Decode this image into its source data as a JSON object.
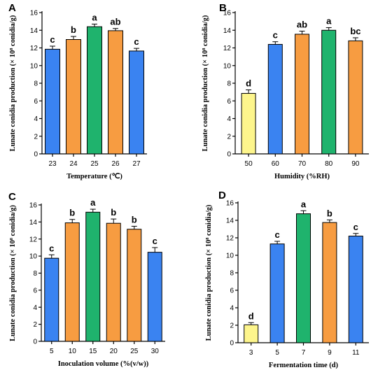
{
  "chart_data": [
    {
      "type": "bar",
      "panel": "A",
      "xlabel": "Temperature (℃)",
      "ylabel": "Lunate conidia production (× 10⁸ conidia/g)",
      "ylim": [
        0,
        16
      ],
      "yticks": [
        "0",
        "2",
        "4",
        "6",
        "8",
        "10",
        "12",
        "14",
        "16"
      ],
      "categories": [
        "23",
        "24",
        "25",
        "26",
        "27"
      ],
      "values": [
        11.85,
        12.95,
        14.4,
        13.95,
        11.65
      ],
      "errors": [
        0.35,
        0.35,
        0.3,
        0.25,
        0.3
      ],
      "sig": [
        "c",
        "b",
        "a",
        "ab",
        "c"
      ],
      "colors": [
        "#3a83f1",
        "#f79c41",
        "#1fb36d",
        "#f79c41",
        "#3a83f1"
      ]
    },
    {
      "type": "bar",
      "panel": "B",
      "xlabel": "Humidity (%RH)",
      "ylabel": "Lunate conidia production (× 10⁸ conidia/g)",
      "ylim": [
        0,
        16
      ],
      "yticks": [
        "0",
        "2",
        "4",
        "6",
        "8",
        "10",
        "12",
        "14",
        "16"
      ],
      "categories": [
        "50",
        "60",
        "70",
        "80",
        "90"
      ],
      "values": [
        6.85,
        12.4,
        13.55,
        14.0,
        12.8
      ],
      "errors": [
        0.4,
        0.3,
        0.35,
        0.3,
        0.35
      ],
      "sig": [
        "d",
        "c",
        "ab",
        "a",
        "bc"
      ],
      "colors": [
        "#fdf58c",
        "#3a83f1",
        "#f79c41",
        "#1fb36d",
        "#f79c41"
      ]
    },
    {
      "type": "bar",
      "panel": "C",
      "xlabel": "Inoculation volume (%(v/w))",
      "ylabel": "Lunate conidia production (× 10⁸ conidia/g)",
      "ylim": [
        0,
        16
      ],
      "yticks": [
        "0",
        "2",
        "4",
        "6",
        "8",
        "10",
        "12",
        "14",
        "16"
      ],
      "categories": [
        "5",
        "10",
        "15",
        "20",
        "25",
        "30"
      ],
      "values": [
        9.75,
        13.9,
        15.15,
        13.85,
        13.15,
        10.45
      ],
      "errors": [
        0.4,
        0.4,
        0.35,
        0.5,
        0.35,
        0.55
      ],
      "sig": [
        "c",
        "b",
        "a",
        "b",
        "b",
        "c"
      ],
      "colors": [
        "#3a83f1",
        "#f79c41",
        "#1fb36d",
        "#f79c41",
        "#f79c41",
        "#3a83f1"
      ]
    },
    {
      "type": "bar",
      "panel": "D",
      "xlabel": "Fermentation time (d)",
      "ylabel": "Lunate conidia production (× 10⁸ conidia/g)",
      "ylim": [
        0,
        16
      ],
      "yticks": [
        "0",
        "2",
        "4",
        "6",
        "8",
        "10",
        "12",
        "14",
        "16"
      ],
      "categories": [
        "3",
        "5",
        "7",
        "9",
        "11"
      ],
      "values": [
        2.05,
        11.3,
        14.75,
        13.75,
        12.2
      ],
      "errors": [
        0.25,
        0.3,
        0.35,
        0.3,
        0.3
      ],
      "sig": [
        "d",
        "c",
        "a",
        "b",
        "c"
      ],
      "colors": [
        "#fdf58c",
        "#3a83f1",
        "#1fb36d",
        "#f79c41",
        "#3a83f1"
      ]
    }
  ]
}
